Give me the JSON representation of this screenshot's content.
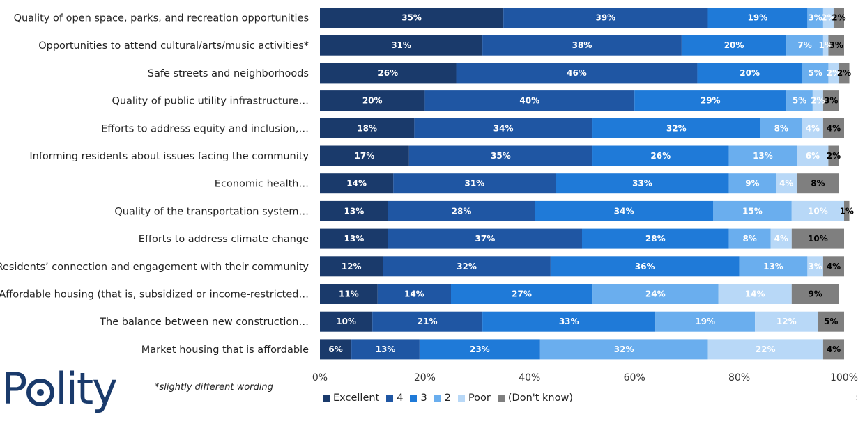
{
  "chart_data": {
    "type": "bar",
    "orientation": "horizontal",
    "stacked": true,
    "categories": [
      "Quality of open space, parks, and recreation opportunities",
      "Opportunities to attend cultural/arts/music activities*",
      "Safe streets and neighborhoods",
      "Quality of public utility infrastructure…",
      "Efforts to address equity and inclusion,…",
      "Informing residents about issues facing the community",
      "Economic health…",
      "Quality of the transportation system…",
      "Efforts to address climate change",
      "Residents’ connection and engagement with their community",
      "Affordable housing (that is, subsidized or income-restricted…",
      "The balance between new construction…",
      "Market housing that is affordable"
    ],
    "series": [
      {
        "name": "Excellent",
        "color": "#1a3a6b",
        "label_color": "#ffffff",
        "values": [
          35,
          31,
          26,
          20,
          18,
          17,
          14,
          13,
          13,
          12,
          11,
          10,
          6
        ]
      },
      {
        "name": "4",
        "color": "#1f56a3",
        "label_color": "#ffffff",
        "values": [
          39,
          38,
          46,
          40,
          34,
          35,
          31,
          28,
          37,
          32,
          14,
          21,
          13
        ]
      },
      {
        "name": "3",
        "color": "#1f7ad8",
        "label_color": "#ffffff",
        "values": [
          19,
          20,
          20,
          29,
          32,
          26,
          33,
          34,
          28,
          36,
          27,
          33,
          23
        ]
      },
      {
        "name": "2",
        "color": "#6aaeee",
        "label_color": "#ffffff",
        "values": [
          3,
          7,
          5,
          5,
          8,
          13,
          9,
          15,
          8,
          13,
          24,
          19,
          32
        ]
      },
      {
        "name": "Poor",
        "color": "#b8d8f7",
        "label_color": "#ffffff",
        "values": [
          2,
          1,
          2,
          2,
          4,
          6,
          4,
          10,
          4,
          3,
          14,
          12,
          22
        ]
      },
      {
        "name": "(Don't know)",
        "color": "#7f7f7f",
        "label_color": "#000000",
        "values": [
          2,
          3,
          2,
          3,
          4,
          2,
          8,
          1,
          10,
          4,
          9,
          5,
          4
        ]
      }
    ],
    "xlim": [
      0,
      100
    ],
    "xticks": [
      "0%",
      "20%",
      "40%",
      "60%",
      "80%",
      "100%"
    ],
    "legend_position": "bottom",
    "grid": false
  },
  "footnote": "*slightly different wording",
  "logo_text": "Polity",
  "corner_mark": ":"
}
